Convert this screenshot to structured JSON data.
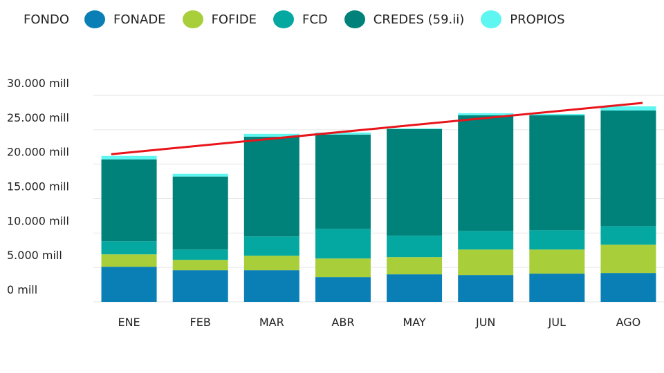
{
  "chart_data": {
    "type": "bar",
    "stacked": true,
    "legend_title": "FONDO",
    "legend_position": "top-left",
    "categories": [
      "ENE",
      "FEB",
      "MAR",
      "ABR",
      "MAY",
      "JUN",
      "JUL",
      "AGO"
    ],
    "y_ticks": [
      {
        "value": 0,
        "label": "0 mill"
      },
      {
        "value": 5000,
        "label": "5.000 mill"
      },
      {
        "value": 10000,
        "label": "10.000 mill"
      },
      {
        "value": 15000,
        "label": "15.000 mill"
      },
      {
        "value": 20000,
        "label": "20.000 mill"
      },
      {
        "value": 25000,
        "label": "25.000 mill"
      },
      {
        "value": 30000,
        "label": "30.000 mill"
      }
    ],
    "ylim": [
      0,
      30000
    ],
    "grid": true,
    "series": [
      {
        "name": "FONADE",
        "color": "#0a7fb5",
        "values": [
          5100,
          4600,
          4600,
          3600,
          4000,
          3900,
          4100,
          4200
        ]
      },
      {
        "name": "FOFIDE",
        "color": "#a8cf3a",
        "values": [
          1800,
          1500,
          2100,
          2700,
          2500,
          3700,
          3500,
          4100
        ]
      },
      {
        "name": "FCD",
        "color": "#05a8a0",
        "values": [
          1900,
          1500,
          2800,
          4300,
          3100,
          2700,
          2800,
          2700
        ]
      },
      {
        "name": "CREDES (59.ii)",
        "color": "#00827a",
        "values": [
          11900,
          10600,
          14500,
          13700,
          15500,
          16800,
          16700,
          16800
        ]
      },
      {
        "name": "PROPIOS",
        "color": "#5ef6f0",
        "values": [
          500,
          400,
          400,
          300,
          100,
          300,
          200,
          600
        ]
      }
    ],
    "trend_line": {
      "color": "#e8141a",
      "start": 21450,
      "end": 28900
    }
  }
}
